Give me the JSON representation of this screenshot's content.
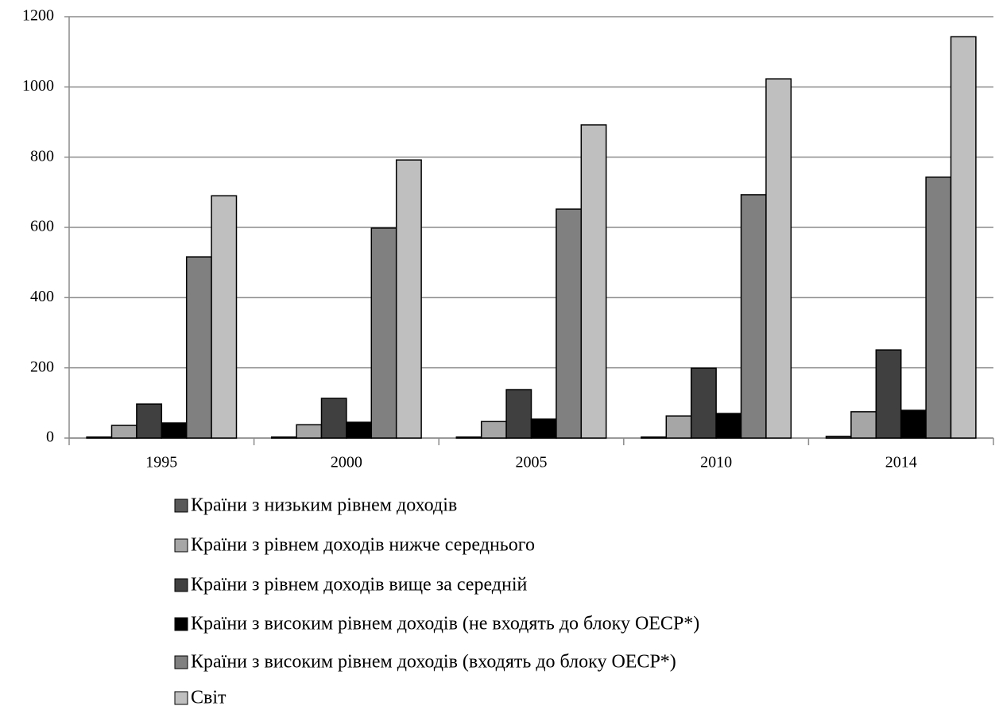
{
  "chart_data": {
    "type": "bar",
    "categories": [
      "1995",
      "2000",
      "2005",
      "2010",
      "2014"
    ],
    "series": [
      {
        "name": "Країни з низьким рівнем доходів",
        "color": "#595959",
        "values": [
          3,
          3,
          3,
          3,
          5
        ]
      },
      {
        "name": "Країни з рівнем доходів нижче середнього",
        "color": "#a6a6a6",
        "values": [
          36,
          38,
          47,
          63,
          75
        ]
      },
      {
        "name": "Країни з рівнем доходів вище за середній",
        "color": "#404040",
        "values": [
          97,
          113,
          138,
          199,
          251
        ]
      },
      {
        "name": "Країни з високим рівнем доходів (не входять до блоку ОЕСР*)",
        "color": "#000000",
        "values": [
          43,
          45,
          54,
          70,
          79
        ]
      },
      {
        "name": "Країни з високим рівнем доходів (входять до блоку ОЕСР*)",
        "color": "#808080",
        "values": [
          516,
          598,
          652,
          693,
          743
        ]
      },
      {
        "name": "Світ",
        "color": "#bfbfbf",
        "values": [
          690,
          792,
          892,
          1023,
          1143
        ]
      }
    ],
    "ylim": [
      0,
      1200
    ],
    "yticks": [
      0,
      200,
      400,
      600,
      800,
      1000,
      1200
    ],
    "grid": true,
    "legend": "bottom"
  }
}
